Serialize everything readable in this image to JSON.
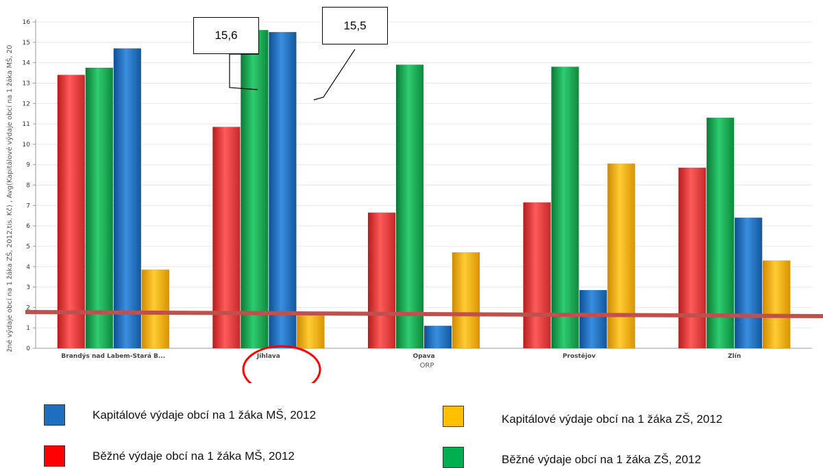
{
  "chart_data": {
    "type": "bar",
    "ylabel": "žné výdaje obcí na 1 žáka ZŠ, 2012,tis. Kč) , Avg(Kapitálové výdaje obcí na 1 žáka MŠ, 20",
    "xlabel": "ORP",
    "categories": [
      "Brandýs nad Labem-Stará B...",
      "Jihlava",
      "Opava",
      "Prostějov",
      "Zlín"
    ],
    "yticks": [
      "0",
      "1",
      "2",
      "3",
      "4",
      "5",
      "6",
      "7",
      "8",
      "9",
      "10",
      "11",
      "12",
      "13",
      "14",
      "15",
      "16"
    ],
    "ylim": [
      0,
      16
    ],
    "grid": true,
    "series": [
      {
        "name": "Běžné výdaje obcí na 1 žáka MŠ, 2012",
        "color": "#e53935",
        "values": [
          13.4,
          10.85,
          6.65,
          7.15,
          8.85
        ]
      },
      {
        "name": "Běžné výdaje obcí na 1 žáka ZŠ, 2012",
        "color": "#16a34a",
        "values": [
          13.75,
          15.6,
          13.9,
          13.8,
          11.3
        ]
      },
      {
        "name": "Kapitálové výdaje obcí na 1 žáka MŠ, 2012",
        "color": "#1f6fc0",
        "values": [
          14.7,
          15.5,
          1.1,
          2.85,
          6.4
        ]
      },
      {
        "name": "Kapitálové výdaje obcí na 1 žáka ZŠ, 2012",
        "color": "#f5b400",
        "values": [
          3.85,
          1.6,
          4.7,
          9.05,
          4.3
        ]
      }
    ],
    "annotations": [
      "15,6",
      "15,5"
    ]
  },
  "legend": {
    "kap_ms": "Kapitálové výdaje obcí na 1 žáka MŠ, 2012",
    "kap_zs": "Kapitálové výdaje obcí na 1 žáka ZŠ, 2012",
    "bez_ms": "Běžné výdaje obcí na 1 žáka MŠ, 2012",
    "bez_zs": "Běžné výdaje obcí na 1 žáka ZŠ, 2012"
  },
  "callouts": {
    "left": "15,6",
    "right": "15,5"
  }
}
